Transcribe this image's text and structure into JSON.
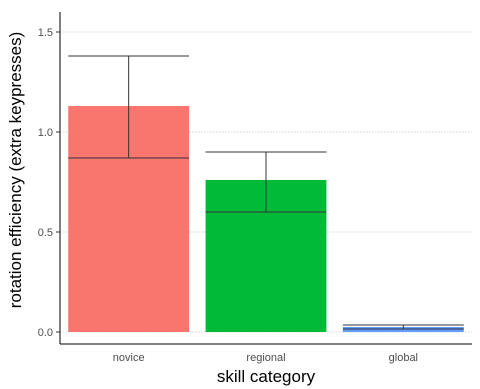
{
  "chart_data": {
    "type": "bar",
    "title": "",
    "xlabel": "skill category",
    "ylabel": "rotation efficiency (extra keypresses)",
    "categories": [
      "novice",
      "regional",
      "global"
    ],
    "values": [
      1.13,
      0.76,
      0.025
    ],
    "median": [
      0.87,
      0.6,
      0.015
    ],
    "error_high": [
      1.38,
      0.9,
      0.035
    ],
    "colors": [
      "#f8766d",
      "#00ba38",
      "#619cff"
    ],
    "ylim": [
      -0.06,
      1.6
    ],
    "yticks": [
      0.0,
      0.5,
      1.0,
      1.5
    ],
    "ytick_labels": [
      "0.0",
      "0.5",
      "1.0",
      "1.5"
    ],
    "grid": true,
    "grid_color": "#c8c8c8"
  }
}
